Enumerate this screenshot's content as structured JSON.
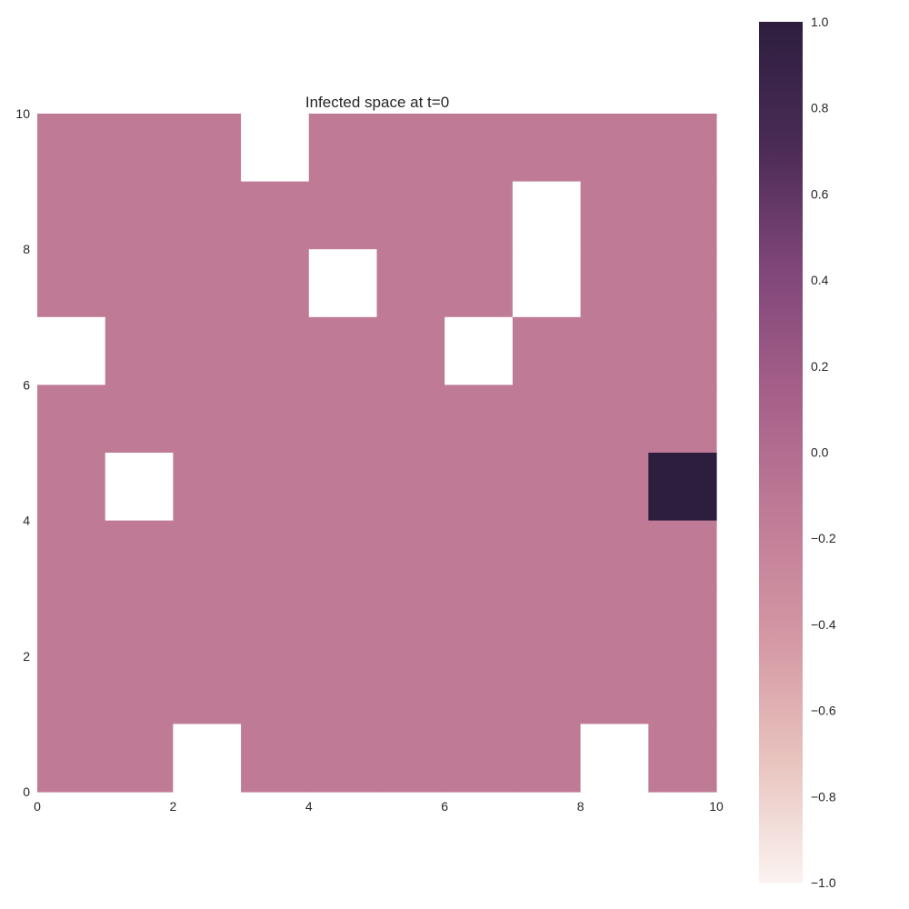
{
  "chart_data": {
    "type": "heatmap",
    "title": "Infected space at t=0",
    "xlabel": "",
    "ylabel": "",
    "xlim": [
      0,
      10
    ],
    "ylim": [
      0,
      10
    ],
    "x_ticks": [
      "0",
      "2",
      "4",
      "6",
      "8",
      "10"
    ],
    "y_ticks": [
      "0",
      "2",
      "4",
      "6",
      "8",
      "10"
    ],
    "grid": false,
    "colorbar": {
      "range": [
        -1.0,
        1.0
      ],
      "ticks": [
        "1.0",
        "0.8",
        "0.6",
        "0.4",
        "0.2",
        "0.0",
        "−0.2",
        "−0.4",
        "−0.6",
        "−0.8",
        "−1.0"
      ],
      "colors": [
        "#fbf3f0",
        "#e8c3be",
        "#d497a3",
        "#bf7b96",
        "#a55f89",
        "#7f4679",
        "#4a2b55",
        "#2d1e3e"
      ]
    },
    "cell_colors": {
      "empty": "#ffffff",
      "zero": "#bf7b96",
      "one": "#2d1e3e"
    },
    "values_note": "rows from top (y=9..10) to bottom (y=0..1); null = empty cell",
    "values": [
      [
        0,
        0,
        0,
        null,
        0,
        0,
        0,
        0,
        0,
        0
      ],
      [
        0,
        0,
        0,
        0,
        0,
        0,
        0,
        null,
        0,
        0
      ],
      [
        0,
        0,
        0,
        0,
        null,
        0,
        0,
        null,
        0,
        0
      ],
      [
        null,
        0,
        0,
        0,
        0,
        0,
        null,
        0,
        0,
        0
      ],
      [
        0,
        0,
        0,
        0,
        0,
        0,
        0,
        0,
        0,
        0
      ],
      [
        0,
        null,
        0,
        0,
        0,
        0,
        0,
        0,
        0,
        1
      ],
      [
        0,
        0,
        0,
        0,
        0,
        0,
        0,
        0,
        0,
        0
      ],
      [
        0,
        0,
        0,
        0,
        0,
        0,
        0,
        0,
        0,
        0
      ],
      [
        0,
        0,
        0,
        0,
        0,
        0,
        0,
        0,
        0,
        0
      ],
      [
        0,
        0,
        null,
        0,
        0,
        0,
        0,
        0,
        null,
        0
      ]
    ]
  }
}
